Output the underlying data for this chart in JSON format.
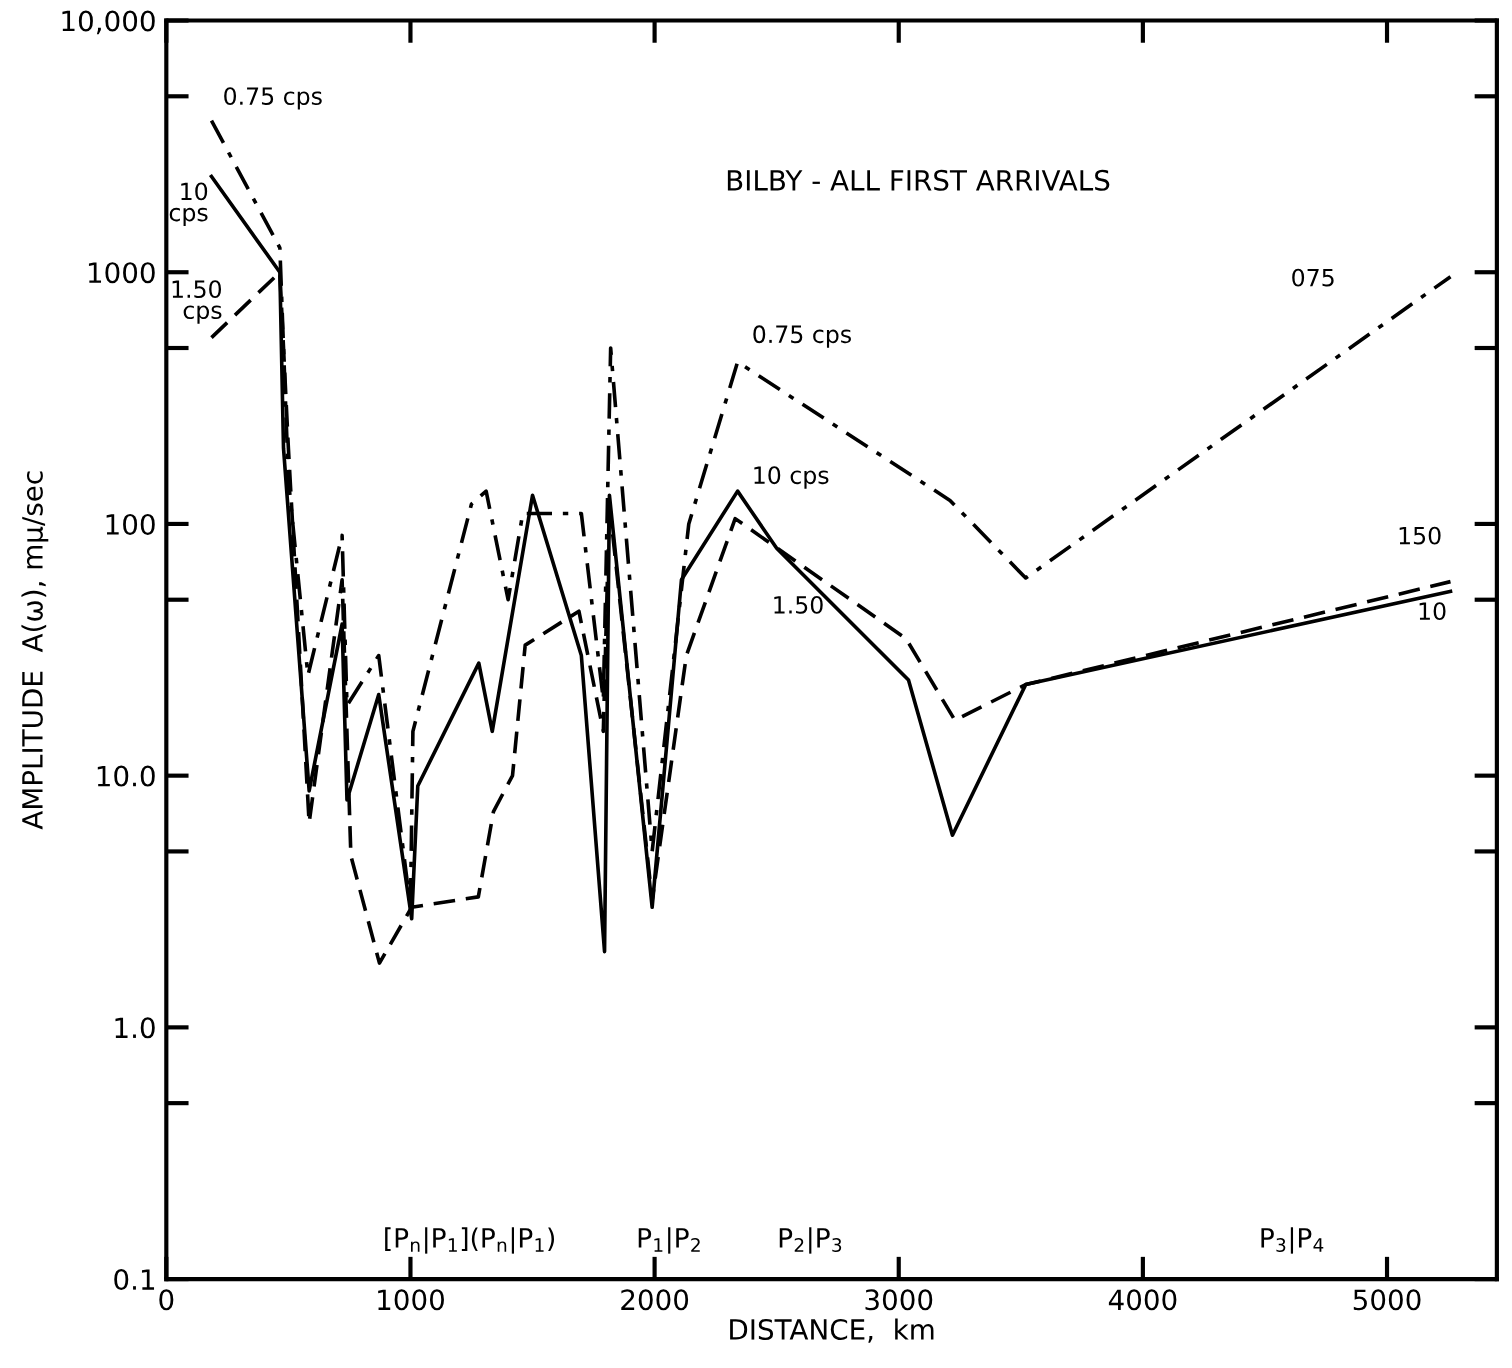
{
  "chart_data": {
    "type": "line",
    "title": "BILBY - ALL FIRST ARRIVALS",
    "xlabel": "DISTANCE,  km",
    "ylabel": "AMPLITUDE  A(ω), mμ/sec",
    "log": "y",
    "grid": false,
    "legend": false,
    "marker": "none",
    "xlim": [
      0,
      5450
    ],
    "xticks": [
      0,
      1000,
      2000,
      3000,
      4000,
      5000
    ],
    "ylim": [
      0.1,
      10000
    ],
    "yticks": [
      {
        "value": 0.1,
        "label": "0.1"
      },
      {
        "value": 0.5,
        "label": null
      },
      {
        "value": 1,
        "label": "1.0"
      },
      {
        "value": 5,
        "label": null
      },
      {
        "value": 10,
        "label": "10.0"
      },
      {
        "value": 50,
        "label": null
      },
      100,
      {
        "value": 500,
        "label": null
      },
      1000,
      {
        "value": 5000,
        "label": null
      },
      {
        "value": 10000,
        "label": "10,000"
      }
    ],
    "series": [
      {
        "name": "0.75 cps",
        "color": "#000000",
        "line_style": "dashdot",
        "x": [
          185,
          465,
          500,
          580,
          720,
          740,
          870,
          1000,
          1010,
          1250,
          1310,
          1400,
          1460,
          1700,
          1790,
          1820,
          1990,
          2140,
          2340,
          3210,
          3520,
          5260
        ],
        "values": [
          4000,
          1250,
          150,
          25,
          90,
          19,
          30,
          3,
          15,
          120,
          135,
          50,
          110,
          110,
          20,
          500,
          5,
          100,
          440,
          124,
          61,
          960
        ]
      },
      {
        "name": "10 cps",
        "color": "#000000",
        "line_style": "solid",
        "x": [
          185,
          465,
          480,
          585,
          720,
          740,
          870,
          1005,
          1030,
          1280,
          1335,
          1500,
          1700,
          1795,
          1815,
          1990,
          2110,
          2340,
          2500,
          3040,
          3220,
          3520,
          5260
        ],
        "values": [
          2400,
          1000,
          200,
          8.7,
          40,
          8,
          21,
          2.7,
          9.1,
          28,
          15,
          130,
          30,
          2,
          130,
          3,
          60,
          135,
          80,
          24,
          5.8,
          23,
          54
        ]
      },
      {
        "name": "1.50 cps",
        "color": "#000000",
        "line_style": "dashed",
        "x": [
          185,
          465,
          500,
          585,
          720,
          756,
          873,
          1005,
          1278,
          1340,
          1418,
          1470,
          1690,
          1790,
          1815,
          1990,
          2130,
          2330,
          3030,
          3230,
          3520,
          5260
        ],
        "values": [
          550,
          1000,
          200,
          6.5,
          60,
          4.8,
          1.8,
          3.0,
          3.3,
          7.2,
          10,
          33,
          45,
          15,
          120,
          3.2,
          30,
          105,
          35,
          16.6,
          23,
          59
        ]
      }
    ],
    "annotations": [
      "0.75 cps",
      "10 cps",
      "1.50",
      "075",
      "150",
      "10",
      "[P$_{n}$|P$_{1}$](P$_{n}$|P$_{1}$)",
      "P$_{1}$|P$_{2}$",
      "P$_{2}$|P$_{3}$",
      "P$_{3}$|P$_{4}$"
    ]
  }
}
